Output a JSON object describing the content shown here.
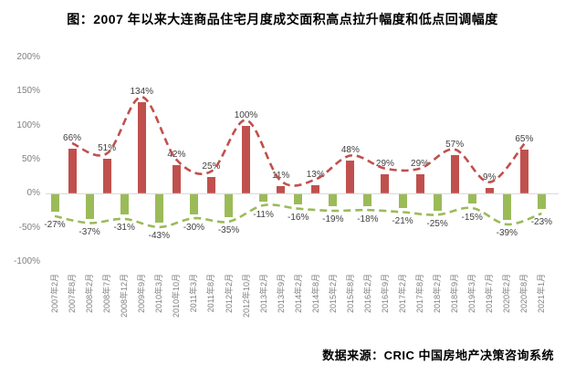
{
  "title": "图：2007 年以来大连商品住宅月度成交面积高点拉升幅度和低点回调幅度",
  "source": "数据来源：CRIC 中国房地产决策咨询系统",
  "chart_data": {
    "type": "bar",
    "subtype": "alternating positive/negative columns with smoothed dashed trend curves over positive tips and under negative tips",
    "title": "图：2007 年以来大连商品住宅月度成交面积高点拉升幅度和低点回调幅度",
    "categories": [
      "2007年2月",
      "2007年8月",
      "2008年2月",
      "2008年7月",
      "2008年12月",
      "2009年9月",
      "2010年3月",
      "2010年10月",
      "2011年3月",
      "2011年8月",
      "2012年2月",
      "2012年10月",
      "2013年2月",
      "2013年9月",
      "2014年2月",
      "2014年8月",
      "2015年2月",
      "2015年8月",
      "2016年2月",
      "2016年9月",
      "2017年2月",
      "2017年8月",
      "2018年2月",
      "2018年9月",
      "2019年3月",
      "2019年7月",
      "2020年2月",
      "2020年8月",
      "2021年1月"
    ],
    "values": [
      -27,
      66,
      -37,
      51,
      -31,
      134,
      -43,
      42,
      -30,
      25,
      -35,
      100,
      -11,
      11,
      -16,
      13,
      -19,
      48,
      -18,
      29,
      -21,
      29,
      -25,
      57,
      -15,
      9,
      -39,
      65,
      -23
    ],
    "data_labels": [
      "-27%",
      "66%",
      "-37%",
      "51%",
      "-31%",
      "134%",
      "-43%",
      "42%",
      "-30%",
      "25%",
      "-35%",
      "100%",
      "-11%",
      "11%",
      "-16%",
      "13%",
      "-19%",
      "48%",
      "-18%",
      "29%",
      "-21%",
      "29%",
      "-25%",
      "57%",
      "-15%",
      "9%",
      "-39%",
      "65%",
      "-23%"
    ],
    "series": [
      {
        "name": "高点拉升幅度",
        "color": "#C0504D",
        "categories": [
          "2007年8月",
          "2008年7月",
          "2009年9月",
          "2010年10月",
          "2011年8月",
          "2012年10月",
          "2013年9月",
          "2014年8月",
          "2015年8月",
          "2016年9月",
          "2017年8月",
          "2018年9月",
          "2019年7月",
          "2020年8月"
        ],
        "values": [
          66,
          51,
          134,
          42,
          25,
          100,
          11,
          13,
          48,
          29,
          29,
          57,
          9,
          65
        ]
      },
      {
        "name": "低点回调幅度",
        "color": "#9BBB59",
        "categories": [
          "2007年2月",
          "2008年2月",
          "2008年12月",
          "2010年3月",
          "2011年3月",
          "2012年2月",
          "2013年2月",
          "2014年2月",
          "2015年2月",
          "2016年2月",
          "2017年2月",
          "2018年2月",
          "2019年3月",
          "2020年2月",
          "2021年1月"
        ],
        "values": [
          -27,
          -37,
          -31,
          -43,
          -30,
          -35,
          -11,
          -16,
          -19,
          -18,
          -21,
          -25,
          -15,
          -39,
          -23
        ]
      }
    ],
    "y_ticks": [
      "200%",
      "150%",
      "100%",
      "50%",
      "0%",
      "-50%",
      "-100%"
    ],
    "y_tick_values": [
      200,
      150,
      100,
      50,
      0,
      -50,
      -100
    ],
    "ylim": [
      -100,
      200
    ],
    "xlabel": "",
    "ylabel": "",
    "grid": "off",
    "legend": "none",
    "colors": {
      "positive_bar": "#C0504D",
      "negative_bar": "#9BBB59",
      "positive_line": "#C0504D",
      "negative_line": "#9BBB59",
      "axis_text": "#7F7F7F",
      "data_label_text": "#404040",
      "zero_line": "#D9D9D9"
    }
  }
}
